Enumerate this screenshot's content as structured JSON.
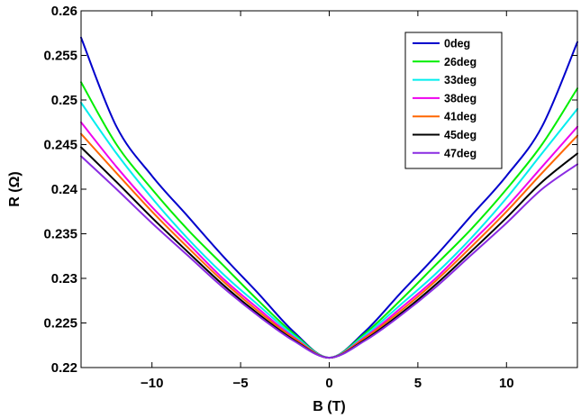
{
  "chart_data": {
    "type": "line",
    "title": "",
    "xlabel": "B (T)",
    "ylabel": "R (Ω)",
    "xlim": [
      -14,
      14
    ],
    "ylim": [
      0.22,
      0.26
    ],
    "xticks": [
      -10,
      -5,
      0,
      5,
      10
    ],
    "xtick_labels": [
      "−10",
      "−5",
      "0",
      "5",
      "10"
    ],
    "yticks": [
      0.22,
      0.225,
      0.23,
      0.235,
      0.24,
      0.245,
      0.25,
      0.255,
      0.26
    ],
    "ytick_labels": [
      "0.22",
      "0.225",
      "0.23",
      "0.235",
      "0.24",
      "0.245",
      "0.25",
      "0.255",
      "0.26"
    ],
    "grid": false,
    "legend_position": "top-right",
    "series": [
      {
        "name": "0deg",
        "color": "#0000cc",
        "x": [
          -14,
          -12,
          -10,
          -8,
          -6,
          -4,
          -2,
          0,
          2,
          4,
          6,
          8,
          10,
          12,
          14
        ],
        "y": [
          0.257,
          0.247,
          0.2415,
          0.237,
          0.2325,
          0.2283,
          0.224,
          0.2211,
          0.224,
          0.2283,
          0.2325,
          0.237,
          0.2415,
          0.247,
          0.2565
        ]
      },
      {
        "name": "26deg",
        "color": "#00ee00",
        "x": [
          -14,
          -12,
          -10,
          -8,
          -6,
          -4,
          -2,
          0,
          2,
          4,
          6,
          8,
          10,
          12,
          14
        ],
        "y": [
          0.252,
          0.245,
          0.24,
          0.2355,
          0.2315,
          0.2275,
          0.2238,
          0.2211,
          0.2238,
          0.2275,
          0.2315,
          0.2355,
          0.24,
          0.245,
          0.2513
        ]
      },
      {
        "name": "33deg",
        "color": "#00eeee",
        "x": [
          -14,
          -12,
          -10,
          -8,
          -6,
          -4,
          -2,
          0,
          2,
          4,
          6,
          8,
          10,
          12,
          14
        ],
        "y": [
          0.2497,
          0.244,
          0.239,
          0.2345,
          0.2305,
          0.227,
          0.2236,
          0.2211,
          0.2236,
          0.227,
          0.2305,
          0.2345,
          0.239,
          0.244,
          0.249
        ]
      },
      {
        "name": "38deg",
        "color": "#ee00ee",
        "x": [
          -14,
          -12,
          -10,
          -8,
          -6,
          -4,
          -2,
          0,
          2,
          4,
          6,
          8,
          10,
          12,
          14
        ],
        "y": [
          0.2475,
          0.2425,
          0.238,
          0.234,
          0.23,
          0.2266,
          0.2234,
          0.2211,
          0.2234,
          0.2266,
          0.23,
          0.234,
          0.238,
          0.2425,
          0.247
        ]
      },
      {
        "name": "41deg",
        "color": "#ff6600",
        "x": [
          -14,
          -12,
          -10,
          -8,
          -6,
          -4,
          -2,
          0,
          2,
          4,
          6,
          8,
          10,
          12,
          14
        ],
        "y": [
          0.2462,
          0.2418,
          0.2375,
          0.2335,
          0.2297,
          0.2263,
          0.2233,
          0.2211,
          0.2233,
          0.2263,
          0.2297,
          0.2335,
          0.2375,
          0.2418,
          0.246
        ]
      },
      {
        "name": "45deg",
        "color": "#000000",
        "x": [
          -14,
          -12,
          -10,
          -8,
          -6,
          -4,
          -2,
          0,
          2,
          4,
          6,
          8,
          10,
          12,
          14
        ],
        "y": [
          0.2447,
          0.2408,
          0.2368,
          0.233,
          0.2293,
          0.226,
          0.2231,
          0.2211,
          0.2231,
          0.226,
          0.2293,
          0.233,
          0.2368,
          0.2408,
          0.244
        ]
      },
      {
        "name": "47deg",
        "color": "#8a2be2",
        "x": [
          -14,
          -12,
          -10,
          -8,
          -6,
          -4,
          -2,
          0,
          2,
          4,
          6,
          8,
          10,
          12,
          14
        ],
        "y": [
          0.2437,
          0.24,
          0.2362,
          0.2326,
          0.229,
          0.2258,
          0.223,
          0.2211,
          0.223,
          0.2258,
          0.229,
          0.2326,
          0.2362,
          0.24,
          0.2428
        ]
      }
    ]
  }
}
